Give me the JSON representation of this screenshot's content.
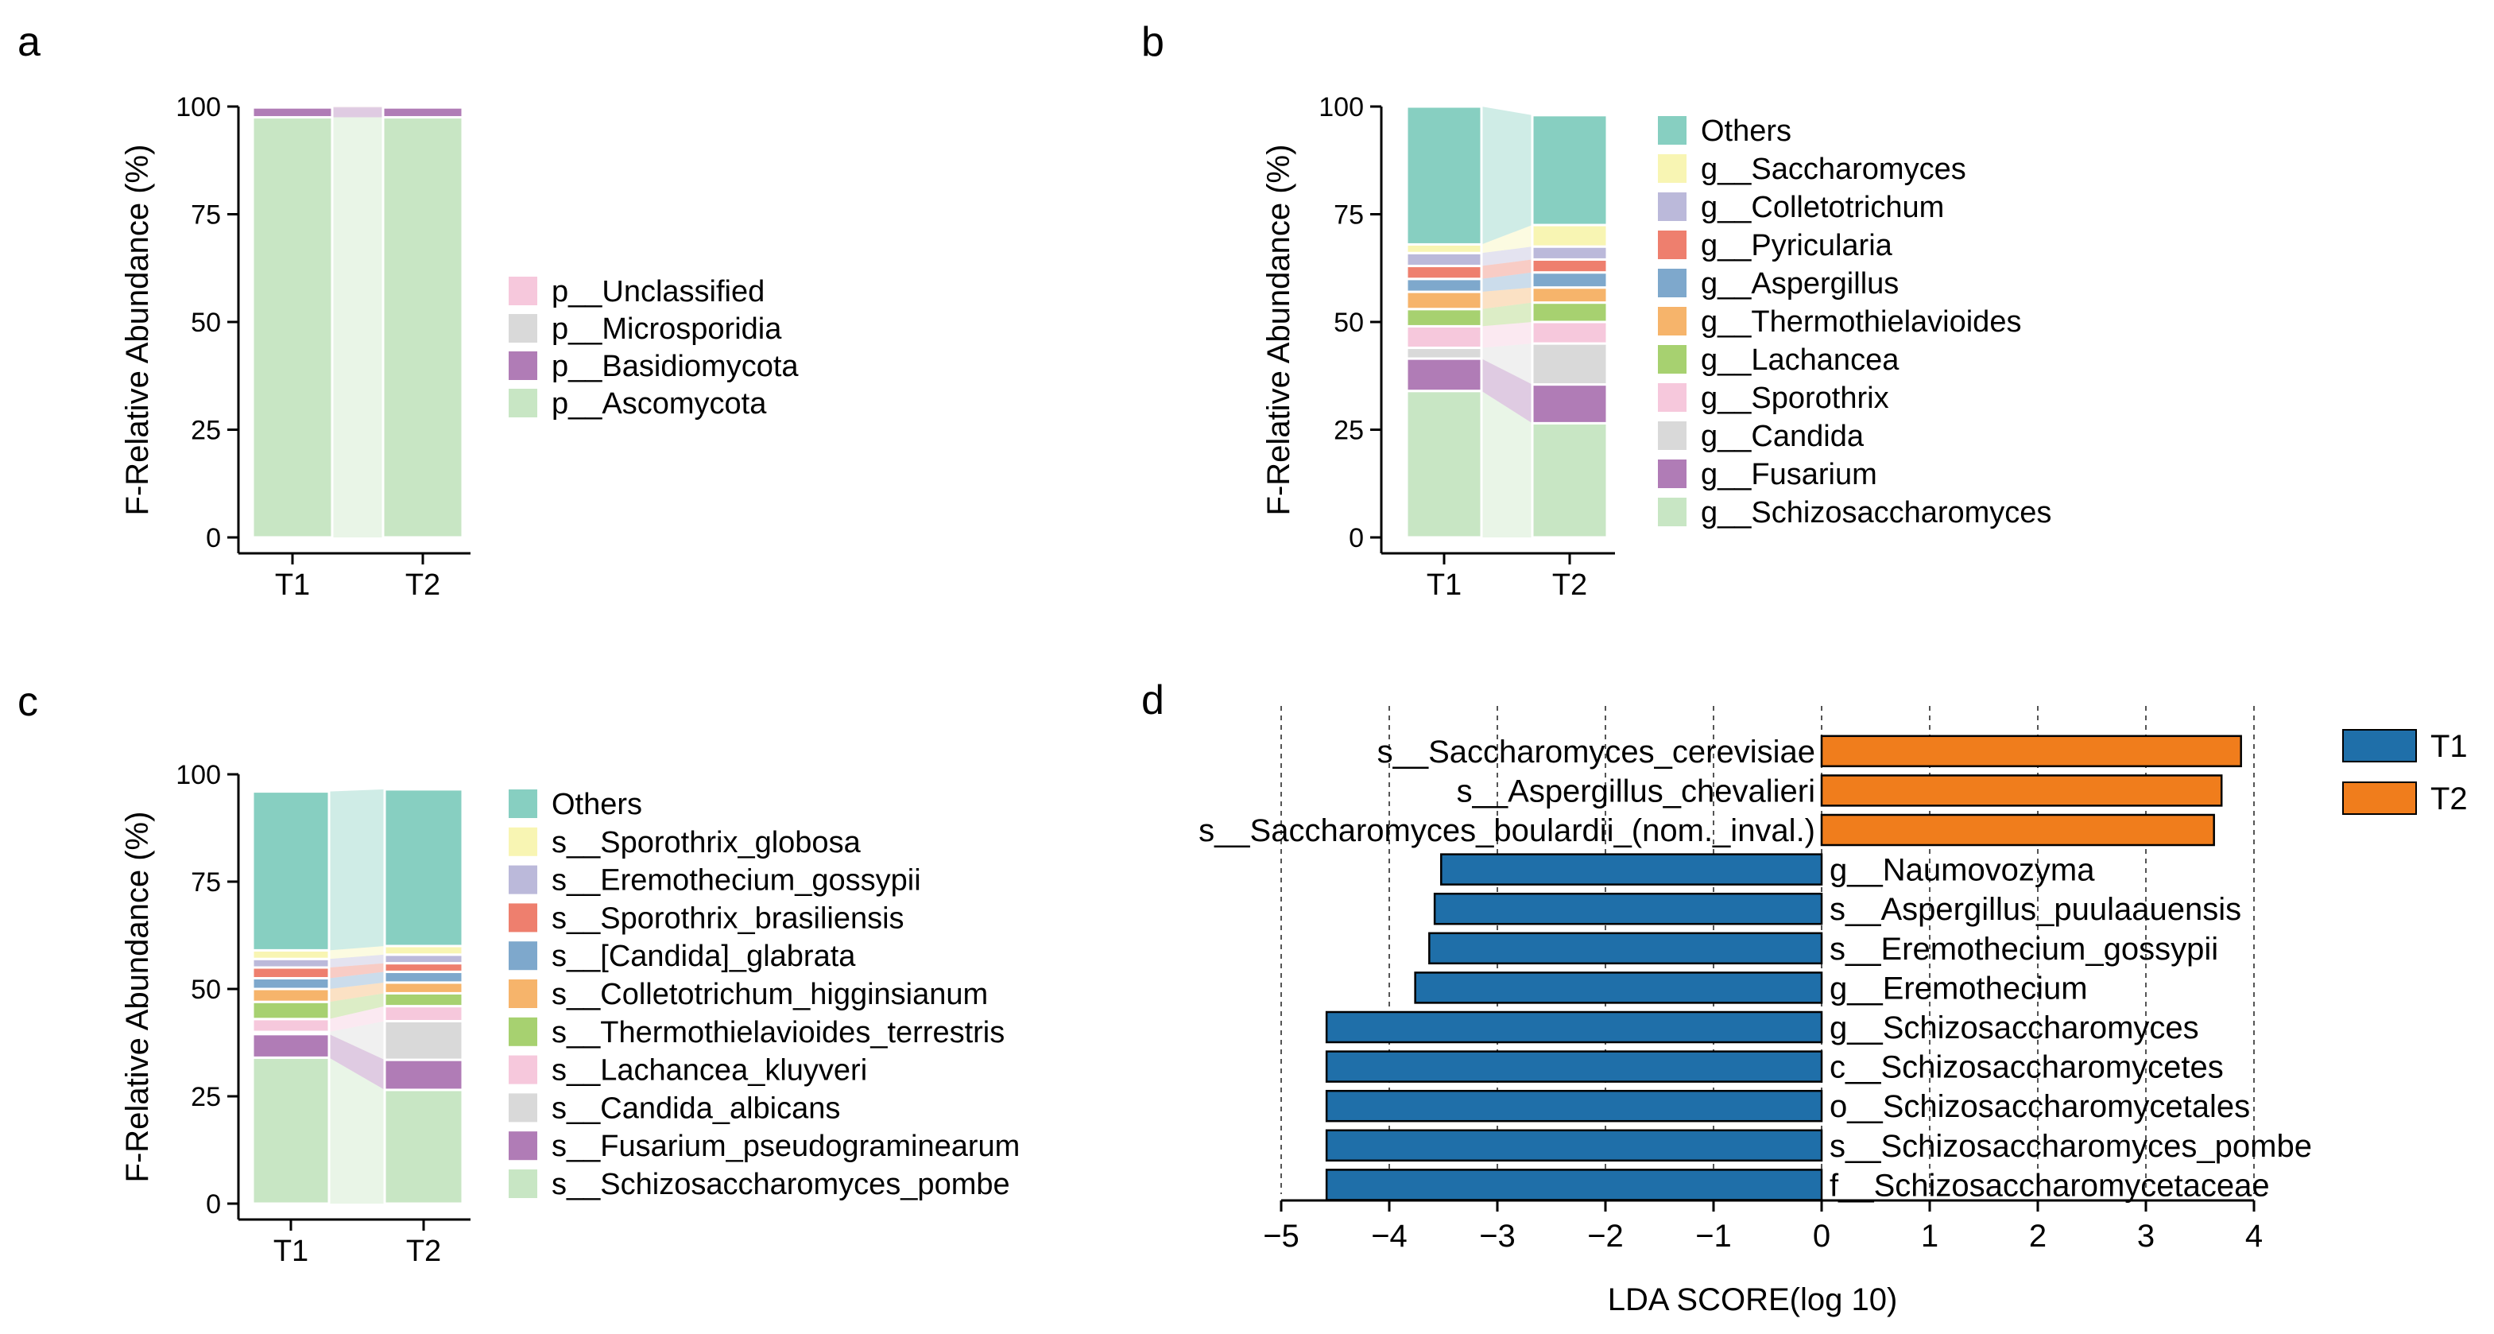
{
  "panels": {
    "a": {
      "letter": "a"
    },
    "b": {
      "letter": "b"
    },
    "c": {
      "letter": "c"
    },
    "d": {
      "letter": "d"
    }
  },
  "chart_data": [
    {
      "id": "a",
      "type": "bar",
      "stacked": true,
      "ylabel": "F-Relative Abundance (%)",
      "ylim": [
        0,
        100
      ],
      "yticks": [
        "0",
        "25",
        "50",
        "75",
        "100"
      ],
      "categories": [
        "T1",
        "T2"
      ],
      "series": [
        {
          "name": "p__Ascomycota",
          "color": "#c8e6c4",
          "values": [
            97.5,
            97.5
          ]
        },
        {
          "name": "p__Basidiomycota",
          "color": "#b07cb6",
          "values": [
            2.3,
            2.3
          ]
        },
        {
          "name": "p__Microsporidia",
          "color": "#d9d9d9",
          "values": [
            0.1,
            0.1
          ]
        },
        {
          "name": "p__Unclassified",
          "color": "#f6c8dc",
          "values": [
            0.1,
            0.1
          ]
        }
      ],
      "legend_order": [
        "p__Unclassified",
        "p__Microsporidia",
        "p__Basidiomycota",
        "p__Ascomycota"
      ]
    },
    {
      "id": "b",
      "type": "bar",
      "stacked": true,
      "ylabel": "F-Relative Abundance (%)",
      "ylim": [
        0,
        100
      ],
      "yticks": [
        "0",
        "25",
        "50",
        "75",
        "100"
      ],
      "categories": [
        "T1",
        "T2"
      ],
      "series": [
        {
          "name": "g__Schizosaccharomyces",
          "color": "#c8e6c4",
          "values": [
            34,
            26.5
          ]
        },
        {
          "name": "g__Fusarium",
          "color": "#b07cb6",
          "values": [
            7.5,
            9
          ]
        },
        {
          "name": "g__Candida",
          "color": "#d9d9d9",
          "values": [
            2.5,
            9.5
          ]
        },
        {
          "name": "g__Sporothrix",
          "color": "#f6c8dc",
          "values": [
            5,
            5
          ]
        },
        {
          "name": "g__Lachancea",
          "color": "#a7d170",
          "values": [
            4,
            4.5
          ]
        },
        {
          "name": "g__Thermothielavioides",
          "color": "#f6b46b",
          "values": [
            4,
            3.5
          ]
        },
        {
          "name": "g__Aspergillus",
          "color": "#7ea8cc",
          "values": [
            3,
            3.5
          ]
        },
        {
          "name": "g__Pyricularia",
          "color": "#ee7f6e",
          "values": [
            3,
            3
          ]
        },
        {
          "name": "g__Colletotrichum",
          "color": "#bbb9da",
          "values": [
            3,
            3
          ]
        },
        {
          "name": "g__Saccharomyces",
          "color": "#f8f5b3",
          "values": [
            2,
            5
          ]
        },
        {
          "name": "Others",
          "color": "#87cfc1",
          "values": [
            32,
            25.5
          ]
        }
      ],
      "legend_order": [
        "Others",
        "g__Saccharomyces",
        "g__Colletotrichum",
        "g__Pyricularia",
        "g__Aspergillus",
        "g__Thermothielavioides",
        "g__Lachancea",
        "g__Sporothrix",
        "g__Candida",
        "g__Fusarium",
        "g__Schizosaccharomyces"
      ]
    },
    {
      "id": "c",
      "type": "bar",
      "stacked": true,
      "ylabel": "F-Relative Abundance (%)",
      "ylim": [
        0,
        100
      ],
      "yticks": [
        "0",
        "25",
        "50",
        "75",
        "100"
      ],
      "categories": [
        "T1",
        "T2"
      ],
      "series": [
        {
          "name": "s__Schizosaccharomyces_pombe",
          "color": "#c8e6c4",
          "values": [
            34,
            26.5
          ]
        },
        {
          "name": "s__Fusarium_pseudograminearum",
          "color": "#b07cb6",
          "values": [
            5.5,
            7
          ]
        },
        {
          "name": "s__Candida_albicans",
          "color": "#d9d9d9",
          "values": [
            0.5,
            9
          ]
        },
        {
          "name": "s__Lachancea_kluyveri",
          "color": "#f6c8dc",
          "values": [
            3,
            3.5
          ]
        },
        {
          "name": "s__Thermothielavioides_terrestris",
          "color": "#a7d170",
          "values": [
            4,
            3
          ]
        },
        {
          "name": "s__Colletotrichum_higginsianum",
          "color": "#f6b46b",
          "values": [
            3,
            2.5
          ]
        },
        {
          "name": "s__[Candida]_glabrata",
          "color": "#7ea8cc",
          "values": [
            2.5,
            2.5
          ]
        },
        {
          "name": "s__Sporothrix_brasiliensis",
          "color": "#ee7f6e",
          "values": [
            2.5,
            2
          ]
        },
        {
          "name": "s__Eremothecium_gossypii",
          "color": "#bbb9da",
          "values": [
            2,
            2
          ]
        },
        {
          "name": "s__Sporothrix_globosa",
          "color": "#f8f5b3",
          "values": [
            2,
            2
          ]
        },
        {
          "name": "Others",
          "color": "#87cfc1",
          "values": [
            37,
            36.5
          ]
        }
      ],
      "legend_order": [
        "Others",
        "s__Sporothrix_globosa",
        "s__Eremothecium_gossypii",
        "s__Sporothrix_brasiliensis",
        "s__[Candida]_glabrata",
        "s__Colletotrichum_higginsianum",
        "s__Thermothielavioides_terrestris",
        "s__Lachancea_kluyveri",
        "s__Candida_albicans",
        "s__Fusarium_pseudograminearum",
        "s__Schizosaccharomyces_pombe"
      ]
    },
    {
      "id": "d",
      "type": "bar",
      "orientation": "horizontal",
      "xlabel": "LDA SCORE(log 10)",
      "xlim": [
        -5,
        4
      ],
      "xticks": [
        "−5",
        "−4",
        "−3",
        "−2",
        "−1",
        "0",
        "1",
        "2",
        "3",
        "4"
      ],
      "groups": [
        {
          "name": "T1",
          "color": "#1f6fa9"
        },
        {
          "name": "T2",
          "color": "#f07d1c"
        }
      ],
      "items": [
        {
          "label": "s__Saccharomyces_cerevisiae",
          "value": 3.88,
          "group": "T2"
        },
        {
          "label": "s__Aspergillus_chevalieri",
          "value": 3.7,
          "group": "T2"
        },
        {
          "label": "s__Saccharomyces_boulardii_(nom._inval.)",
          "value": 3.63,
          "group": "T2"
        },
        {
          "label": "g__Naumovozyma",
          "value": -3.52,
          "group": "T1"
        },
        {
          "label": "s__Aspergillus_puulaauensis",
          "value": -3.58,
          "group": "T1"
        },
        {
          "label": "s__Eremothecium_gossypii",
          "value": -3.63,
          "group": "T1"
        },
        {
          "label": "g__Eremothecium",
          "value": -3.76,
          "group": "T1"
        },
        {
          "label": "g__Schizosaccharomyces",
          "value": -4.58,
          "group": "T1"
        },
        {
          "label": "c__Schizosaccharomycetes",
          "value": -4.58,
          "group": "T1"
        },
        {
          "label": "o__Schizosaccharomycetales",
          "value": -4.58,
          "group": "T1"
        },
        {
          "label": "s__Schizosaccharomyces_pombe",
          "value": -4.58,
          "group": "T1"
        },
        {
          "label": "f__Schizosaccharomycetaceae",
          "value": -4.58,
          "group": "T1"
        }
      ]
    }
  ]
}
